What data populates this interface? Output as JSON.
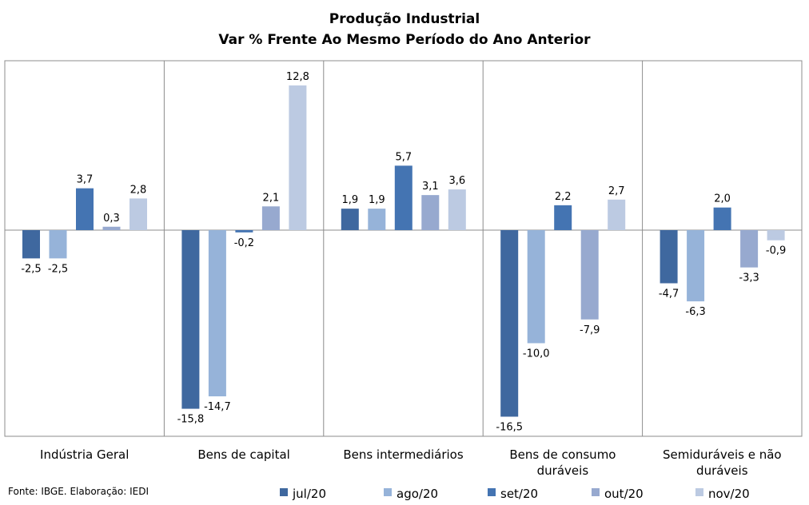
{
  "chart_data": {
    "type": "bar",
    "title_line1": "Produção  Industrial",
    "title_line2": "Var % Frente Ao Mesmo Período do Ano Anterior",
    "categories": [
      [
        "Indústria Geral"
      ],
      [
        "Bens de capital"
      ],
      [
        "Bens intermediários"
      ],
      [
        "Bens de consumo",
        "duráveis"
      ],
      [
        "Semiduráveis e não",
        "duráveis"
      ]
    ],
    "series": [
      {
        "name": "jul/20",
        "color": "#3f689f",
        "values": [
          -2.5,
          -15.8,
          1.9,
          -16.5,
          -4.7
        ],
        "labels": [
          "-2,5",
          "-15,8",
          "1,9",
          "-16,5",
          "-4,7"
        ]
      },
      {
        "name": "ago/20",
        "color": "#96b3d9",
        "values": [
          -2.5,
          -14.7,
          1.9,
          -10.0,
          -6.3
        ],
        "labels": [
          "-2,5",
          "-14,7",
          "1,9",
          "-10,0",
          "-6,3"
        ]
      },
      {
        "name": "set/20",
        "color": "#4474b2",
        "values": [
          3.7,
          -0.2,
          5.7,
          2.2,
          2.0
        ],
        "labels": [
          "3,7",
          "-0,2",
          "5,7",
          "2,2",
          "2,0"
        ]
      },
      {
        "name": "out/20",
        "color": "#97a9cf",
        "values": [
          0.3,
          2.1,
          3.1,
          -7.9,
          -3.3
        ],
        "labels": [
          "0,3",
          "2,1",
          "3,1",
          "-7,9",
          "-3,3"
        ]
      },
      {
        "name": "nov/20",
        "color": "#bccae2",
        "values": [
          2.8,
          12.8,
          3.6,
          2.7,
          -0.9
        ],
        "labels": [
          "2,8",
          "12,8",
          "3,6",
          "2,7",
          "-0,9"
        ]
      }
    ],
    "ylim": [
      -17.5,
      14.5
    ],
    "grid": false,
    "legend_position": "bottom",
    "source": "Fonte: IBGE. Elaboração: IEDI"
  }
}
